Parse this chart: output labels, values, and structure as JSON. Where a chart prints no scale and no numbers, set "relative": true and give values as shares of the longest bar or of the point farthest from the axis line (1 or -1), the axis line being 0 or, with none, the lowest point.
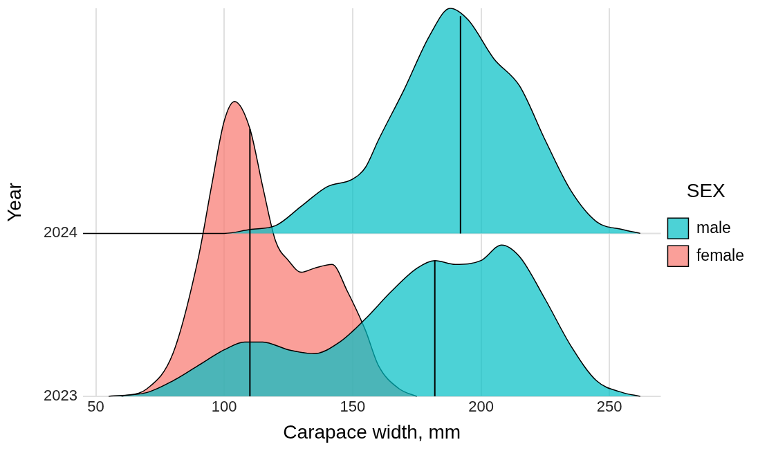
{
  "chart_data": {
    "type": "area",
    "relative": true,
    "xlabel": "Carapace width, mm",
    "ylabel": "Year",
    "legend_title": "SEX",
    "legend": "right",
    "grid": "x",
    "xlim": [
      45,
      270
    ],
    "xticks": [
      50,
      100,
      150,
      200,
      250
    ],
    "annotations": [
      "2023",
      "2024"
    ],
    "series": [
      {
        "name": "female",
        "color": "#f8766d",
        "x": [
          60,
          70,
          80,
          90,
          95,
          100,
          104,
          110,
          115,
          120,
          125,
          130,
          135,
          142,
          148,
          155,
          160,
          168,
          175
        ],
        "values": [
          0,
          0.02,
          0.11,
          0.36,
          0.54,
          0.71,
          0.76,
          0.69,
          0.54,
          0.4,
          0.35,
          0.32,
          0.33,
          0.34,
          0.27,
          0.17,
          0.08,
          0.02,
          0
        ]
      },
      {
        "name": "male",
        "color": "#00bfc4",
        "x": [
          55,
          70,
          80,
          90,
          100,
          108,
          115,
          125,
          135,
          145,
          155,
          165,
          175,
          182,
          190,
          200,
          208,
          215,
          225,
          235,
          245,
          255,
          262
        ],
        "values": [
          0,
          0.01,
          0.04,
          0.08,
          0.12,
          0.14,
          0.14,
          0.12,
          0.11,
          0.14,
          0.2,
          0.27,
          0.33,
          0.35,
          0.34,
          0.35,
          0.39,
          0.36,
          0.25,
          0.13,
          0.04,
          0.01,
          0
        ]
      },
      {
        "color": "#00bfc4",
        "x": [
          45,
          100,
          110,
          120,
          130,
          140,
          150,
          155,
          160,
          170,
          180,
          188,
          195,
          205,
          215,
          225,
          235,
          245,
          255,
          262
        ],
        "values": [
          0.42,
          0.42,
          0.43,
          0.44,
          0.49,
          0.54,
          0.56,
          0.59,
          0.66,
          0.79,
          0.93,
          1,
          0.97,
          0.87,
          0.8,
          0.66,
          0.53,
          0.45,
          0.43,
          0.42
        ]
      },
      {
        "type": "line",
        "color": "#000000",
        "x": [
          110,
          110
        ],
        "values": [
          0,
          0.69
        ]
      },
      {
        "type": "line",
        "color": "#000000",
        "x": [
          182,
          182
        ],
        "values": [
          0,
          0.35
        ]
      },
      {
        "type": "line",
        "color": "#000000",
        "x": [
          192,
          192
        ],
        "values": [
          0.42,
          0.98
        ]
      }
    ]
  }
}
